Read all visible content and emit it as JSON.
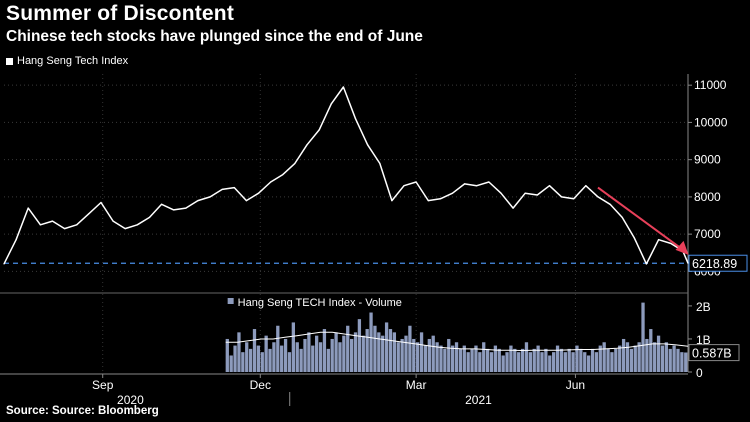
{
  "title": "Summer of Discontent",
  "subtitle": "Chinese tech stocks have plunged since the end of June",
  "legend": {
    "label": "Hang Seng Tech Index"
  },
  "source": "Source: Source: Bloomberg",
  "colors": {
    "background": "#000000",
    "line": "#ffffff",
    "arrow": "#e8405a",
    "dashed": "#4a8fe8",
    "volume_bar": "#8d9bbd"
  },
  "chart_data": [
    {
      "type": "line",
      "name": "Hang Seng Tech Index",
      "ylim": [
        5500,
        11300
      ],
      "yticks": [
        6000,
        7000,
        8000,
        9000,
        10000,
        11000
      ],
      "last_value_label": "6218.89",
      "reference_line": 6218.89,
      "x_date_range": [
        "2020-07-20",
        "2021-08-19"
      ],
      "x_tick_labels": [
        "Sep",
        "Dec",
        "Mar",
        "Jun"
      ],
      "x_tick_dates": [
        "2020-09-15",
        "2020-12-15",
        "2021-03-15",
        "2021-06-15"
      ],
      "year_labels": [
        "2020",
        "2021"
      ],
      "year_label_dates": [
        "2020-10-01",
        "2021-04-20"
      ],
      "x": [
        "2020-07-20",
        "2020-07-27",
        "2020-08-03",
        "2020-08-10",
        "2020-08-17",
        "2020-08-24",
        "2020-08-31",
        "2020-09-07",
        "2020-09-14",
        "2020-09-21",
        "2020-09-28",
        "2020-10-05",
        "2020-10-12",
        "2020-10-19",
        "2020-10-26",
        "2020-11-02",
        "2020-11-09",
        "2020-11-16",
        "2020-11-23",
        "2020-11-30",
        "2020-12-07",
        "2020-12-14",
        "2020-12-21",
        "2020-12-28",
        "2021-01-04",
        "2021-01-11",
        "2021-01-18",
        "2021-01-25",
        "2021-02-01",
        "2021-02-08",
        "2021-02-15",
        "2021-02-22",
        "2021-03-01",
        "2021-03-08",
        "2021-03-15",
        "2021-03-22",
        "2021-03-29",
        "2021-04-05",
        "2021-04-12",
        "2021-04-19",
        "2021-04-26",
        "2021-05-03",
        "2021-05-10",
        "2021-05-17",
        "2021-05-24",
        "2021-05-31",
        "2021-06-07",
        "2021-06-14",
        "2021-06-21",
        "2021-06-28",
        "2021-07-05",
        "2021-07-12",
        "2021-07-19",
        "2021-07-26",
        "2021-08-02",
        "2021-08-09",
        "2021-08-16",
        "2021-08-19"
      ],
      "values": [
        6200,
        6850,
        7700,
        7250,
        7350,
        7150,
        7250,
        7550,
        7850,
        7350,
        7150,
        7250,
        7450,
        7800,
        7650,
        7700,
        7900,
        8000,
        8200,
        8250,
        7900,
        8100,
        8400,
        8600,
        8900,
        9400,
        9800,
        10500,
        10950,
        10100,
        9400,
        8900,
        7900,
        8300,
        8400,
        7900,
        7950,
        8100,
        8350,
        8300,
        8400,
        8100,
        7700,
        8100,
        8050,
        8300,
        8000,
        7950,
        8300,
        8000,
        7800,
        7450,
        6900,
        6200,
        6850,
        6750,
        6550,
        6220
      ]
    },
    {
      "type": "bar",
      "name": "Hang Seng TECH Index - Volume",
      "ylim": [
        0,
        2.3
      ],
      "yticks": [
        0,
        1,
        2
      ],
      "ytick_labels": [
        "0",
        "1B",
        "2B"
      ],
      "last_value_label": "0.587B",
      "x_date_range": [
        "2020-07-20",
        "2021-08-19"
      ],
      "start_date": "2020-11-25",
      "end_date": "2021-08-19",
      "values": [
        1.0,
        0.5,
        0.8,
        1.2,
        0.6,
        0.9,
        0.7,
        1.3,
        0.8,
        0.6,
        1.1,
        0.7,
        0.9,
        1.4,
        0.8,
        1.0,
        0.6,
        1.5,
        0.9,
        0.7,
        1.0,
        1.2,
        0.8,
        1.1,
        0.9,
        1.3,
        0.7,
        1.0,
        1.2,
        0.9,
        1.1,
        1.4,
        1.0,
        1.2,
        1.6,
        1.1,
        1.3,
        1.8,
        1.4,
        1.2,
        1.1,
        1.5,
        1.3,
        1.2,
        0.9,
        1.0,
        1.1,
        1.4,
        1.0,
        0.9,
        1.2,
        0.8,
        1.0,
        1.1,
        0.9,
        0.8,
        0.7,
        1.0,
        0.8,
        0.9,
        0.7,
        0.8,
        0.6,
        0.7,
        0.8,
        0.6,
        0.9,
        0.7,
        0.6,
        0.8,
        0.7,
        0.5,
        0.6,
        0.8,
        0.7,
        0.6,
        0.7,
        0.9,
        0.6,
        0.7,
        0.8,
        0.6,
        0.7,
        0.5,
        0.6,
        0.8,
        0.7,
        0.6,
        0.7,
        0.6,
        0.8,
        0.7,
        0.6,
        0.5,
        0.7,
        0.6,
        0.8,
        0.9,
        0.7,
        0.6,
        0.7,
        0.8,
        1.0,
        0.9,
        0.7,
        0.8,
        0.9,
        2.1,
        1.0,
        1.3,
        0.9,
        1.1,
        0.8,
        0.9,
        0.7,
        0.8,
        0.7,
        0.6,
        0.59
      ],
      "average_values": [
        0.9,
        0.9,
        0.95,
        1.0,
        1.0,
        1.05,
        1.1,
        1.15,
        1.2,
        1.2,
        1.15,
        1.1,
        1.05,
        1.0,
        0.95,
        0.9,
        0.85,
        0.8,
        0.75,
        0.72,
        0.7,
        0.7,
        0.68,
        0.66,
        0.66,
        0.65,
        0.66,
        0.66,
        0.66,
        0.67,
        0.68,
        0.68,
        0.7,
        0.72,
        0.75,
        0.8,
        0.85,
        0.85,
        0.82,
        0.78
      ]
    }
  ]
}
